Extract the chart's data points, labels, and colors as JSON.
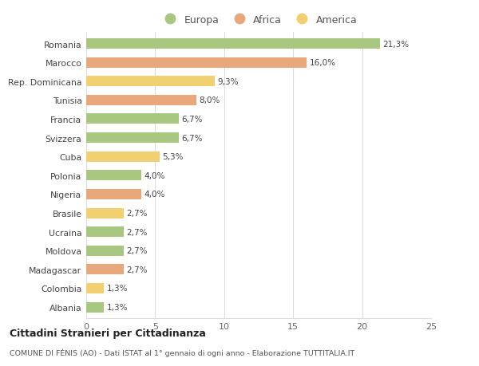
{
  "categories": [
    "Romania",
    "Marocco",
    "Rep. Dominicana",
    "Tunisia",
    "Francia",
    "Svizzera",
    "Cuba",
    "Polonia",
    "Nigeria",
    "Brasile",
    "Ucraina",
    "Moldova",
    "Madagascar",
    "Colombia",
    "Albania"
  ],
  "values": [
    21.3,
    16.0,
    9.3,
    8.0,
    6.7,
    6.7,
    5.3,
    4.0,
    4.0,
    2.7,
    2.7,
    2.7,
    2.7,
    1.3,
    1.3
  ],
  "labels": [
    "21,3%",
    "16,0%",
    "9,3%",
    "8,0%",
    "6,7%",
    "6,7%",
    "5,3%",
    "4,0%",
    "4,0%",
    "2,7%",
    "2,7%",
    "2,7%",
    "2,7%",
    "1,3%",
    "1,3%"
  ],
  "continent": [
    "Europa",
    "Africa",
    "America",
    "Africa",
    "Europa",
    "Europa",
    "America",
    "Europa",
    "Africa",
    "America",
    "Europa",
    "Europa",
    "Africa",
    "America",
    "Europa"
  ],
  "colors": {
    "Europa": "#a8c882",
    "Africa": "#e8a87c",
    "America": "#f0d070"
  },
  "xlim": [
    0,
    25
  ],
  "xticks": [
    0,
    5,
    10,
    15,
    20,
    25
  ],
  "background_color": "#ffffff",
  "grid_color": "#dddddd",
  "title_main": "Cittadini Stranieri per Cittadinanza",
  "title_sub": "COMUNE DI FÉNIS (AO) - Dati ISTAT al 1° gennaio di ogni anno - Elaborazione TUTTITALIA.IT",
  "bar_height": 0.55,
  "figsize": [
    6.0,
    4.6
  ],
  "dpi": 100
}
